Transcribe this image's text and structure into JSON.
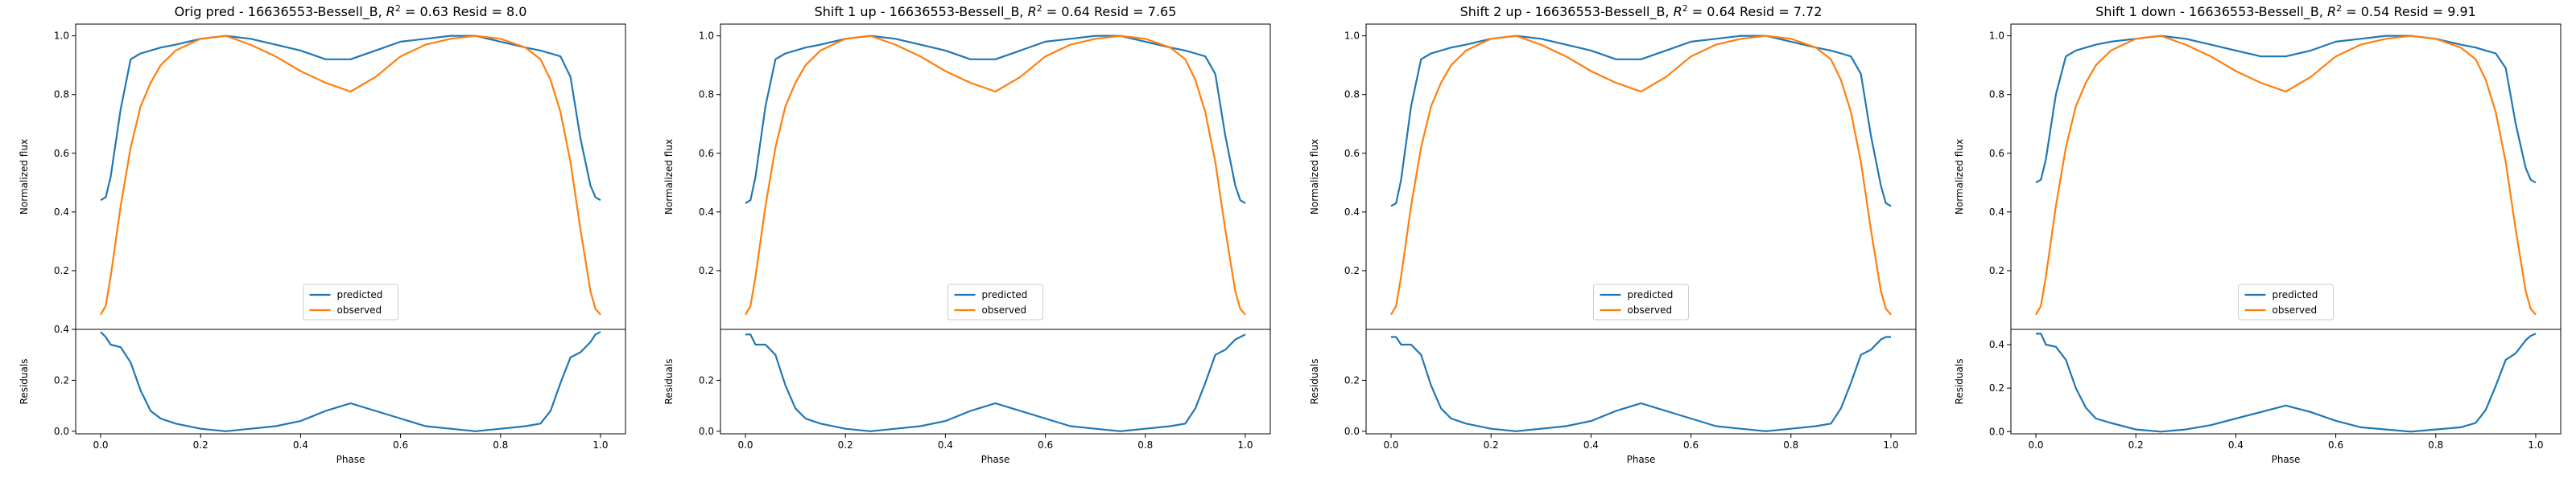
{
  "chart_data": [
    {
      "type": "line",
      "title_main": "Orig pred - 16636553-Bessell_B, ",
      "title_r2": "0.63",
      "title_resid": " Resid = 8.0",
      "r2_symbol": "R",
      "r2_exp": "2",
      "ylabel": "Normalized flux",
      "residual_ylabel": "Residuals",
      "xlabel": "Phase",
      "xlim": [
        -0.05,
        1.05
      ],
      "ylim": [
        0.0,
        1.04
      ],
      "residual_ylim": [
        -0.01,
        0.4
      ],
      "xticks": [
        "0.0",
        "0.2",
        "0.4",
        "0.6",
        "0.8",
        "1.0"
      ],
      "yticks": [
        "0.2",
        "0.4",
        "0.6",
        "0.8",
        "1.0"
      ],
      "residual_yticks": [
        "0.0",
        "0.2",
        "0.4"
      ],
      "legend_position": "lower-center",
      "x": [
        0.0,
        0.01,
        0.02,
        0.04,
        0.06,
        0.08,
        0.1,
        0.12,
        0.15,
        0.2,
        0.25,
        0.3,
        0.35,
        0.4,
        0.45,
        0.5,
        0.55,
        0.6,
        0.65,
        0.7,
        0.75,
        0.8,
        0.85,
        0.88,
        0.9,
        0.92,
        0.94,
        0.96,
        0.98,
        0.99,
        1.0
      ],
      "series": [
        {
          "name": "predicted",
          "color": "#1f77b4",
          "values": [
            0.44,
            0.45,
            0.52,
            0.75,
            0.92,
            0.94,
            0.95,
            0.96,
            0.97,
            0.99,
            1.0,
            0.99,
            0.97,
            0.95,
            0.92,
            0.92,
            0.95,
            0.98,
            0.99,
            1.0,
            1.0,
            0.98,
            0.96,
            0.95,
            0.94,
            0.93,
            0.86,
            0.65,
            0.49,
            0.45,
            0.44
          ]
        },
        {
          "name": "observed",
          "color": "#ff7f0e",
          "values": [
            0.05,
            0.08,
            0.18,
            0.42,
            0.62,
            0.76,
            0.84,
            0.9,
            0.95,
            0.99,
            1.0,
            0.97,
            0.93,
            0.88,
            0.84,
            0.81,
            0.86,
            0.93,
            0.97,
            0.99,
            1.0,
            0.99,
            0.96,
            0.92,
            0.85,
            0.74,
            0.57,
            0.34,
            0.13,
            0.07,
            0.05
          ]
        }
      ],
      "residuals": [
        0.39,
        0.37,
        0.34,
        0.33,
        0.27,
        0.16,
        0.08,
        0.05,
        0.03,
        0.01,
        0.0,
        0.01,
        0.02,
        0.04,
        0.08,
        0.11,
        0.08,
        0.05,
        0.02,
        0.01,
        0.0,
        0.01,
        0.02,
        0.03,
        0.08,
        0.19,
        0.29,
        0.31,
        0.35,
        0.38,
        0.39
      ],
      "residual_color": "#1f77b4"
    },
    {
      "type": "line",
      "title_main": "Shift 1 up - 16636553-Bessell_B, ",
      "title_r2": "0.64",
      "title_resid": " Resid = 7.65",
      "r2_symbol": "R",
      "r2_exp": "2",
      "ylabel": "Normalized flux",
      "residual_ylabel": "Residuals",
      "xlabel": "Phase",
      "xlim": [
        -0.05,
        1.05
      ],
      "ylim": [
        0.0,
        1.04
      ],
      "residual_ylim": [
        -0.01,
        0.4
      ],
      "xticks": [
        "0.0",
        "0.2",
        "0.4",
        "0.6",
        "0.8",
        "1.0"
      ],
      "yticks": [
        "0.2",
        "0.4",
        "0.6",
        "0.8",
        "1.0"
      ],
      "residual_yticks": [
        "0.0",
        "0.2"
      ],
      "legend_position": "lower-center",
      "x": [
        0.0,
        0.01,
        0.02,
        0.04,
        0.06,
        0.08,
        0.1,
        0.12,
        0.15,
        0.2,
        0.25,
        0.3,
        0.35,
        0.4,
        0.45,
        0.5,
        0.55,
        0.6,
        0.65,
        0.7,
        0.75,
        0.8,
        0.85,
        0.88,
        0.9,
        0.92,
        0.94,
        0.96,
        0.98,
        0.99,
        1.0
      ],
      "series": [
        {
          "name": "predicted",
          "color": "#1f77b4",
          "values": [
            0.43,
            0.44,
            0.52,
            0.76,
            0.92,
            0.94,
            0.95,
            0.96,
            0.97,
            0.99,
            1.0,
            0.99,
            0.97,
            0.95,
            0.92,
            0.92,
            0.95,
            0.98,
            0.99,
            1.0,
            1.0,
            0.98,
            0.96,
            0.95,
            0.94,
            0.93,
            0.87,
            0.66,
            0.49,
            0.44,
            0.43
          ]
        },
        {
          "name": "observed",
          "color": "#ff7f0e",
          "values": [
            0.05,
            0.08,
            0.18,
            0.42,
            0.62,
            0.76,
            0.84,
            0.9,
            0.95,
            0.99,
            1.0,
            0.97,
            0.93,
            0.88,
            0.84,
            0.81,
            0.86,
            0.93,
            0.97,
            0.99,
            1.0,
            0.99,
            0.96,
            0.92,
            0.85,
            0.74,
            0.57,
            0.34,
            0.13,
            0.07,
            0.05
          ]
        }
      ],
      "residuals": [
        0.38,
        0.38,
        0.34,
        0.34,
        0.3,
        0.18,
        0.09,
        0.05,
        0.03,
        0.01,
        0.0,
        0.01,
        0.02,
        0.04,
        0.08,
        0.11,
        0.08,
        0.05,
        0.02,
        0.01,
        0.0,
        0.01,
        0.02,
        0.03,
        0.09,
        0.19,
        0.3,
        0.32,
        0.36,
        0.37,
        0.38
      ],
      "residual_color": "#1f77b4"
    },
    {
      "type": "line",
      "title_main": "Shift 2 up - 16636553-Bessell_B, ",
      "title_r2": "0.64",
      "title_resid": " Resid = 7.72",
      "r2_symbol": "R",
      "r2_exp": "2",
      "ylabel": "Normalized flux",
      "residual_ylabel": "Residuals",
      "xlabel": "Phase",
      "xlim": [
        -0.05,
        1.05
      ],
      "ylim": [
        0.0,
        1.04
      ],
      "residual_ylim": [
        -0.01,
        0.4
      ],
      "xticks": [
        "0.0",
        "0.2",
        "0.4",
        "0.6",
        "0.8",
        "1.0"
      ],
      "yticks": [
        "0.2",
        "0.4",
        "0.6",
        "0.8",
        "1.0"
      ],
      "residual_yticks": [
        "0.0",
        "0.2"
      ],
      "legend_position": "lower-center",
      "x": [
        0.0,
        0.01,
        0.02,
        0.04,
        0.06,
        0.08,
        0.1,
        0.12,
        0.15,
        0.2,
        0.25,
        0.3,
        0.35,
        0.4,
        0.45,
        0.5,
        0.55,
        0.6,
        0.65,
        0.7,
        0.75,
        0.8,
        0.85,
        0.88,
        0.9,
        0.92,
        0.94,
        0.96,
        0.98,
        0.99,
        1.0
      ],
      "series": [
        {
          "name": "predicted",
          "color": "#1f77b4",
          "values": [
            0.42,
            0.43,
            0.51,
            0.76,
            0.92,
            0.94,
            0.95,
            0.96,
            0.97,
            0.99,
            1.0,
            0.99,
            0.97,
            0.95,
            0.92,
            0.92,
            0.95,
            0.98,
            0.99,
            1.0,
            1.0,
            0.98,
            0.96,
            0.95,
            0.94,
            0.93,
            0.87,
            0.66,
            0.49,
            0.43,
            0.42
          ]
        },
        {
          "name": "observed",
          "color": "#ff7f0e",
          "values": [
            0.05,
            0.08,
            0.18,
            0.42,
            0.62,
            0.76,
            0.84,
            0.9,
            0.95,
            0.99,
            1.0,
            0.97,
            0.93,
            0.88,
            0.84,
            0.81,
            0.86,
            0.93,
            0.97,
            0.99,
            1.0,
            0.99,
            0.96,
            0.92,
            0.85,
            0.74,
            0.57,
            0.34,
            0.13,
            0.07,
            0.05
          ]
        }
      ],
      "residuals": [
        0.37,
        0.37,
        0.34,
        0.34,
        0.3,
        0.18,
        0.09,
        0.05,
        0.03,
        0.01,
        0.0,
        0.01,
        0.02,
        0.04,
        0.08,
        0.11,
        0.08,
        0.05,
        0.02,
        0.01,
        0.0,
        0.01,
        0.02,
        0.03,
        0.09,
        0.19,
        0.3,
        0.32,
        0.36,
        0.37,
        0.37
      ],
      "residual_color": "#1f77b4"
    },
    {
      "type": "line",
      "title_main": "Shift 1 down - 16636553-Bessell_B, ",
      "title_r2": "0.54",
      "title_resid": " Resid = 9.91",
      "r2_symbol": "R",
      "r2_exp": "2",
      "ylabel": "Normalized flux",
      "residual_ylabel": "Residuals",
      "xlabel": "Phase",
      "xlim": [
        -0.05,
        1.05
      ],
      "ylim": [
        0.0,
        1.04
      ],
      "residual_ylim": [
        -0.01,
        0.47
      ],
      "xticks": [
        "0.0",
        "0.2",
        "0.4",
        "0.6",
        "0.8",
        "1.0"
      ],
      "yticks": [
        "0.2",
        "0.4",
        "0.6",
        "0.8",
        "1.0"
      ],
      "residual_yticks": [
        "0.0",
        "0.2",
        "0.4"
      ],
      "legend_position": "lower-center",
      "x": [
        0.0,
        0.01,
        0.02,
        0.04,
        0.06,
        0.08,
        0.1,
        0.12,
        0.15,
        0.2,
        0.25,
        0.3,
        0.35,
        0.4,
        0.45,
        0.5,
        0.55,
        0.6,
        0.65,
        0.7,
        0.75,
        0.8,
        0.85,
        0.88,
        0.9,
        0.92,
        0.94,
        0.96,
        0.98,
        0.99,
        1.0
      ],
      "series": [
        {
          "name": "predicted",
          "color": "#1f77b4",
          "values": [
            0.5,
            0.51,
            0.58,
            0.8,
            0.93,
            0.95,
            0.96,
            0.97,
            0.98,
            0.99,
            1.0,
            0.99,
            0.97,
            0.95,
            0.93,
            0.93,
            0.95,
            0.98,
            0.99,
            1.0,
            1.0,
            0.99,
            0.97,
            0.96,
            0.95,
            0.94,
            0.89,
            0.7,
            0.55,
            0.51,
            0.5
          ]
        },
        {
          "name": "observed",
          "color": "#ff7f0e",
          "values": [
            0.05,
            0.08,
            0.18,
            0.42,
            0.62,
            0.76,
            0.84,
            0.9,
            0.95,
            0.99,
            1.0,
            0.97,
            0.93,
            0.88,
            0.84,
            0.81,
            0.86,
            0.93,
            0.97,
            0.99,
            1.0,
            0.99,
            0.96,
            0.92,
            0.85,
            0.74,
            0.57,
            0.34,
            0.13,
            0.07,
            0.05
          ]
        }
      ],
      "residuals": [
        0.45,
        0.45,
        0.4,
        0.39,
        0.33,
        0.2,
        0.11,
        0.06,
        0.04,
        0.01,
        0.0,
        0.01,
        0.03,
        0.06,
        0.09,
        0.12,
        0.09,
        0.05,
        0.02,
        0.01,
        0.0,
        0.01,
        0.02,
        0.04,
        0.1,
        0.21,
        0.33,
        0.36,
        0.42,
        0.44,
        0.45
      ],
      "residual_color": "#1f77b4"
    }
  ]
}
